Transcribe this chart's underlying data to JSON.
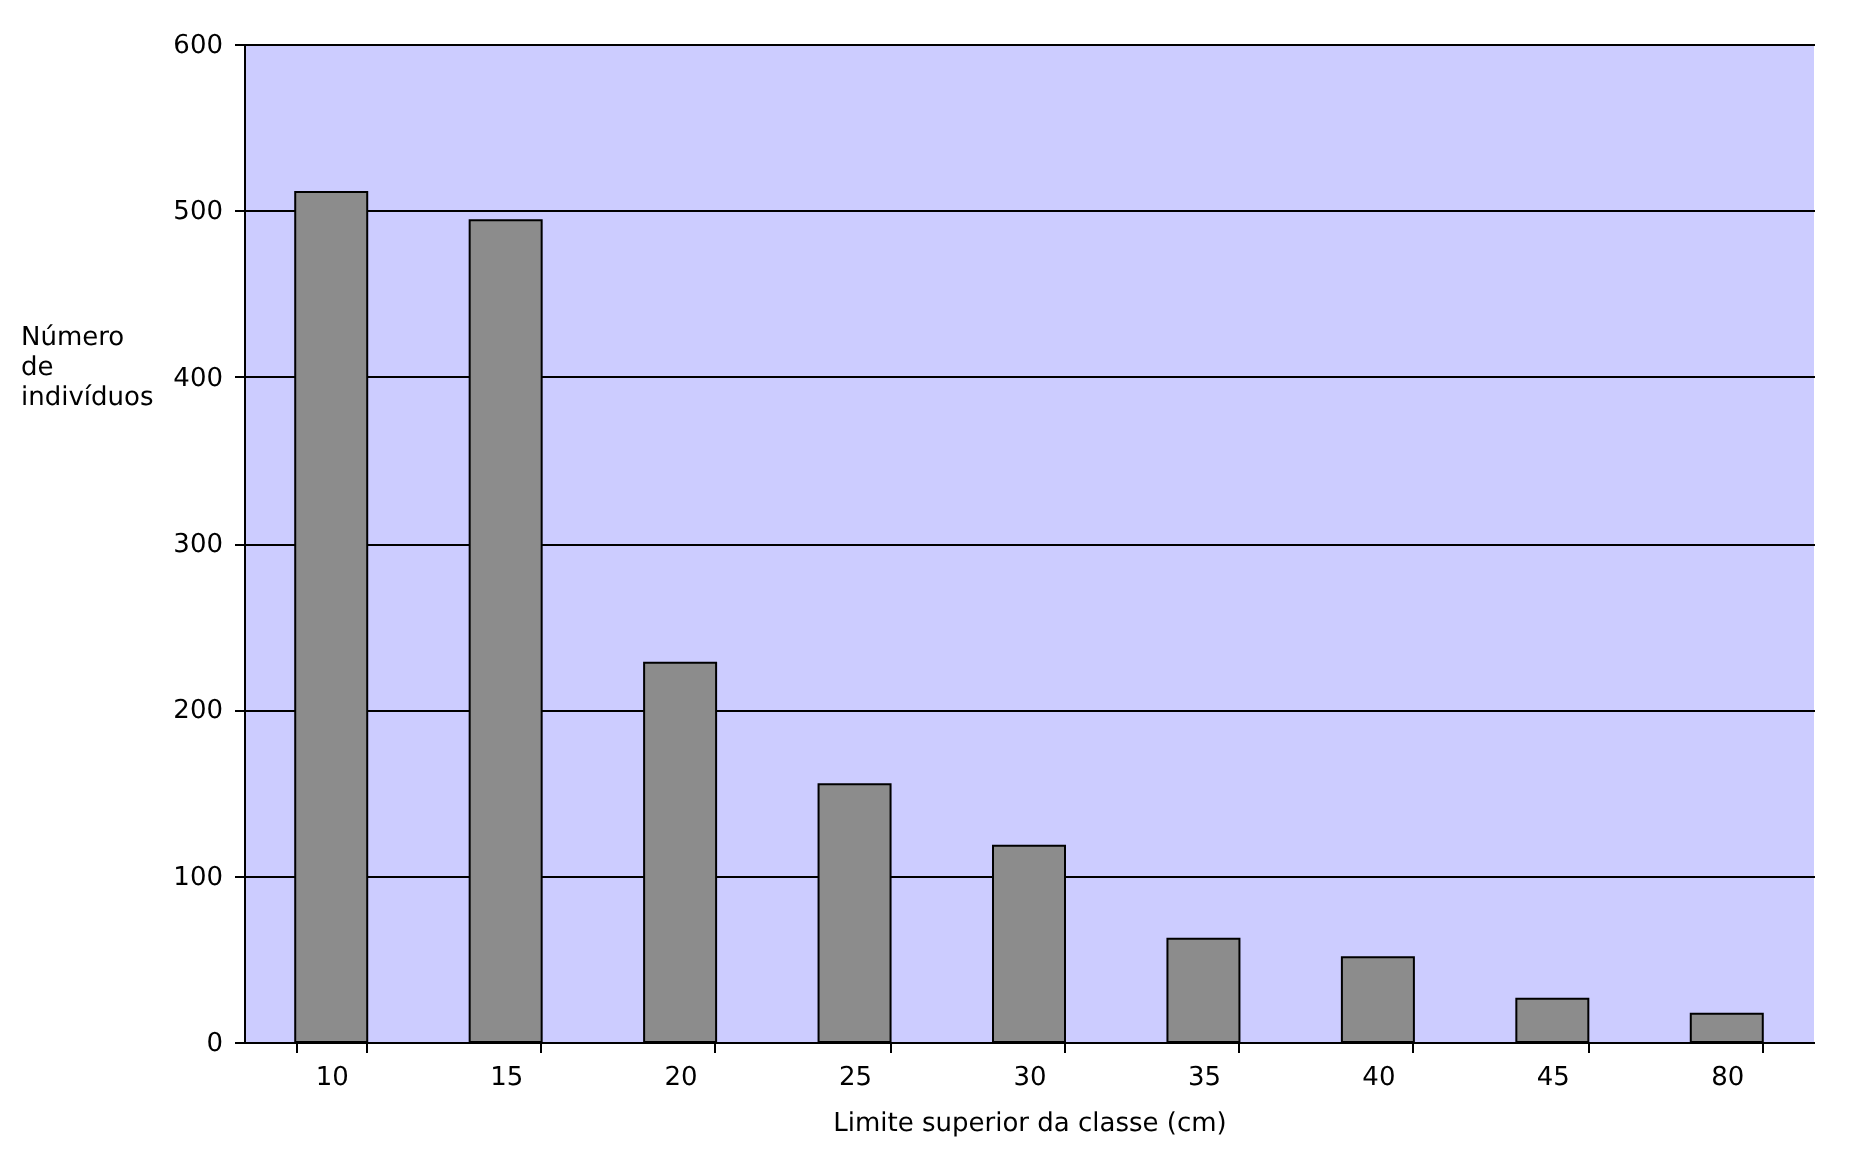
{
  "chart_data": {
    "type": "bar",
    "xlabel": "Limite superior da classe (cm)",
    "ylabel": "Número de indivíduos",
    "categories": [
      "10",
      "15",
      "20",
      "25",
      "30",
      "35",
      "40",
      "45",
      "80"
    ],
    "values": [
      511,
      494,
      228,
      155,
      118,
      62,
      51,
      26,
      17
    ],
    "color": "#8c8c8c",
    "ylim": [
      0,
      600
    ],
    "yticks": [
      0,
      100,
      200,
      300,
      400,
      500,
      600
    ],
    "grid": "y"
  }
}
